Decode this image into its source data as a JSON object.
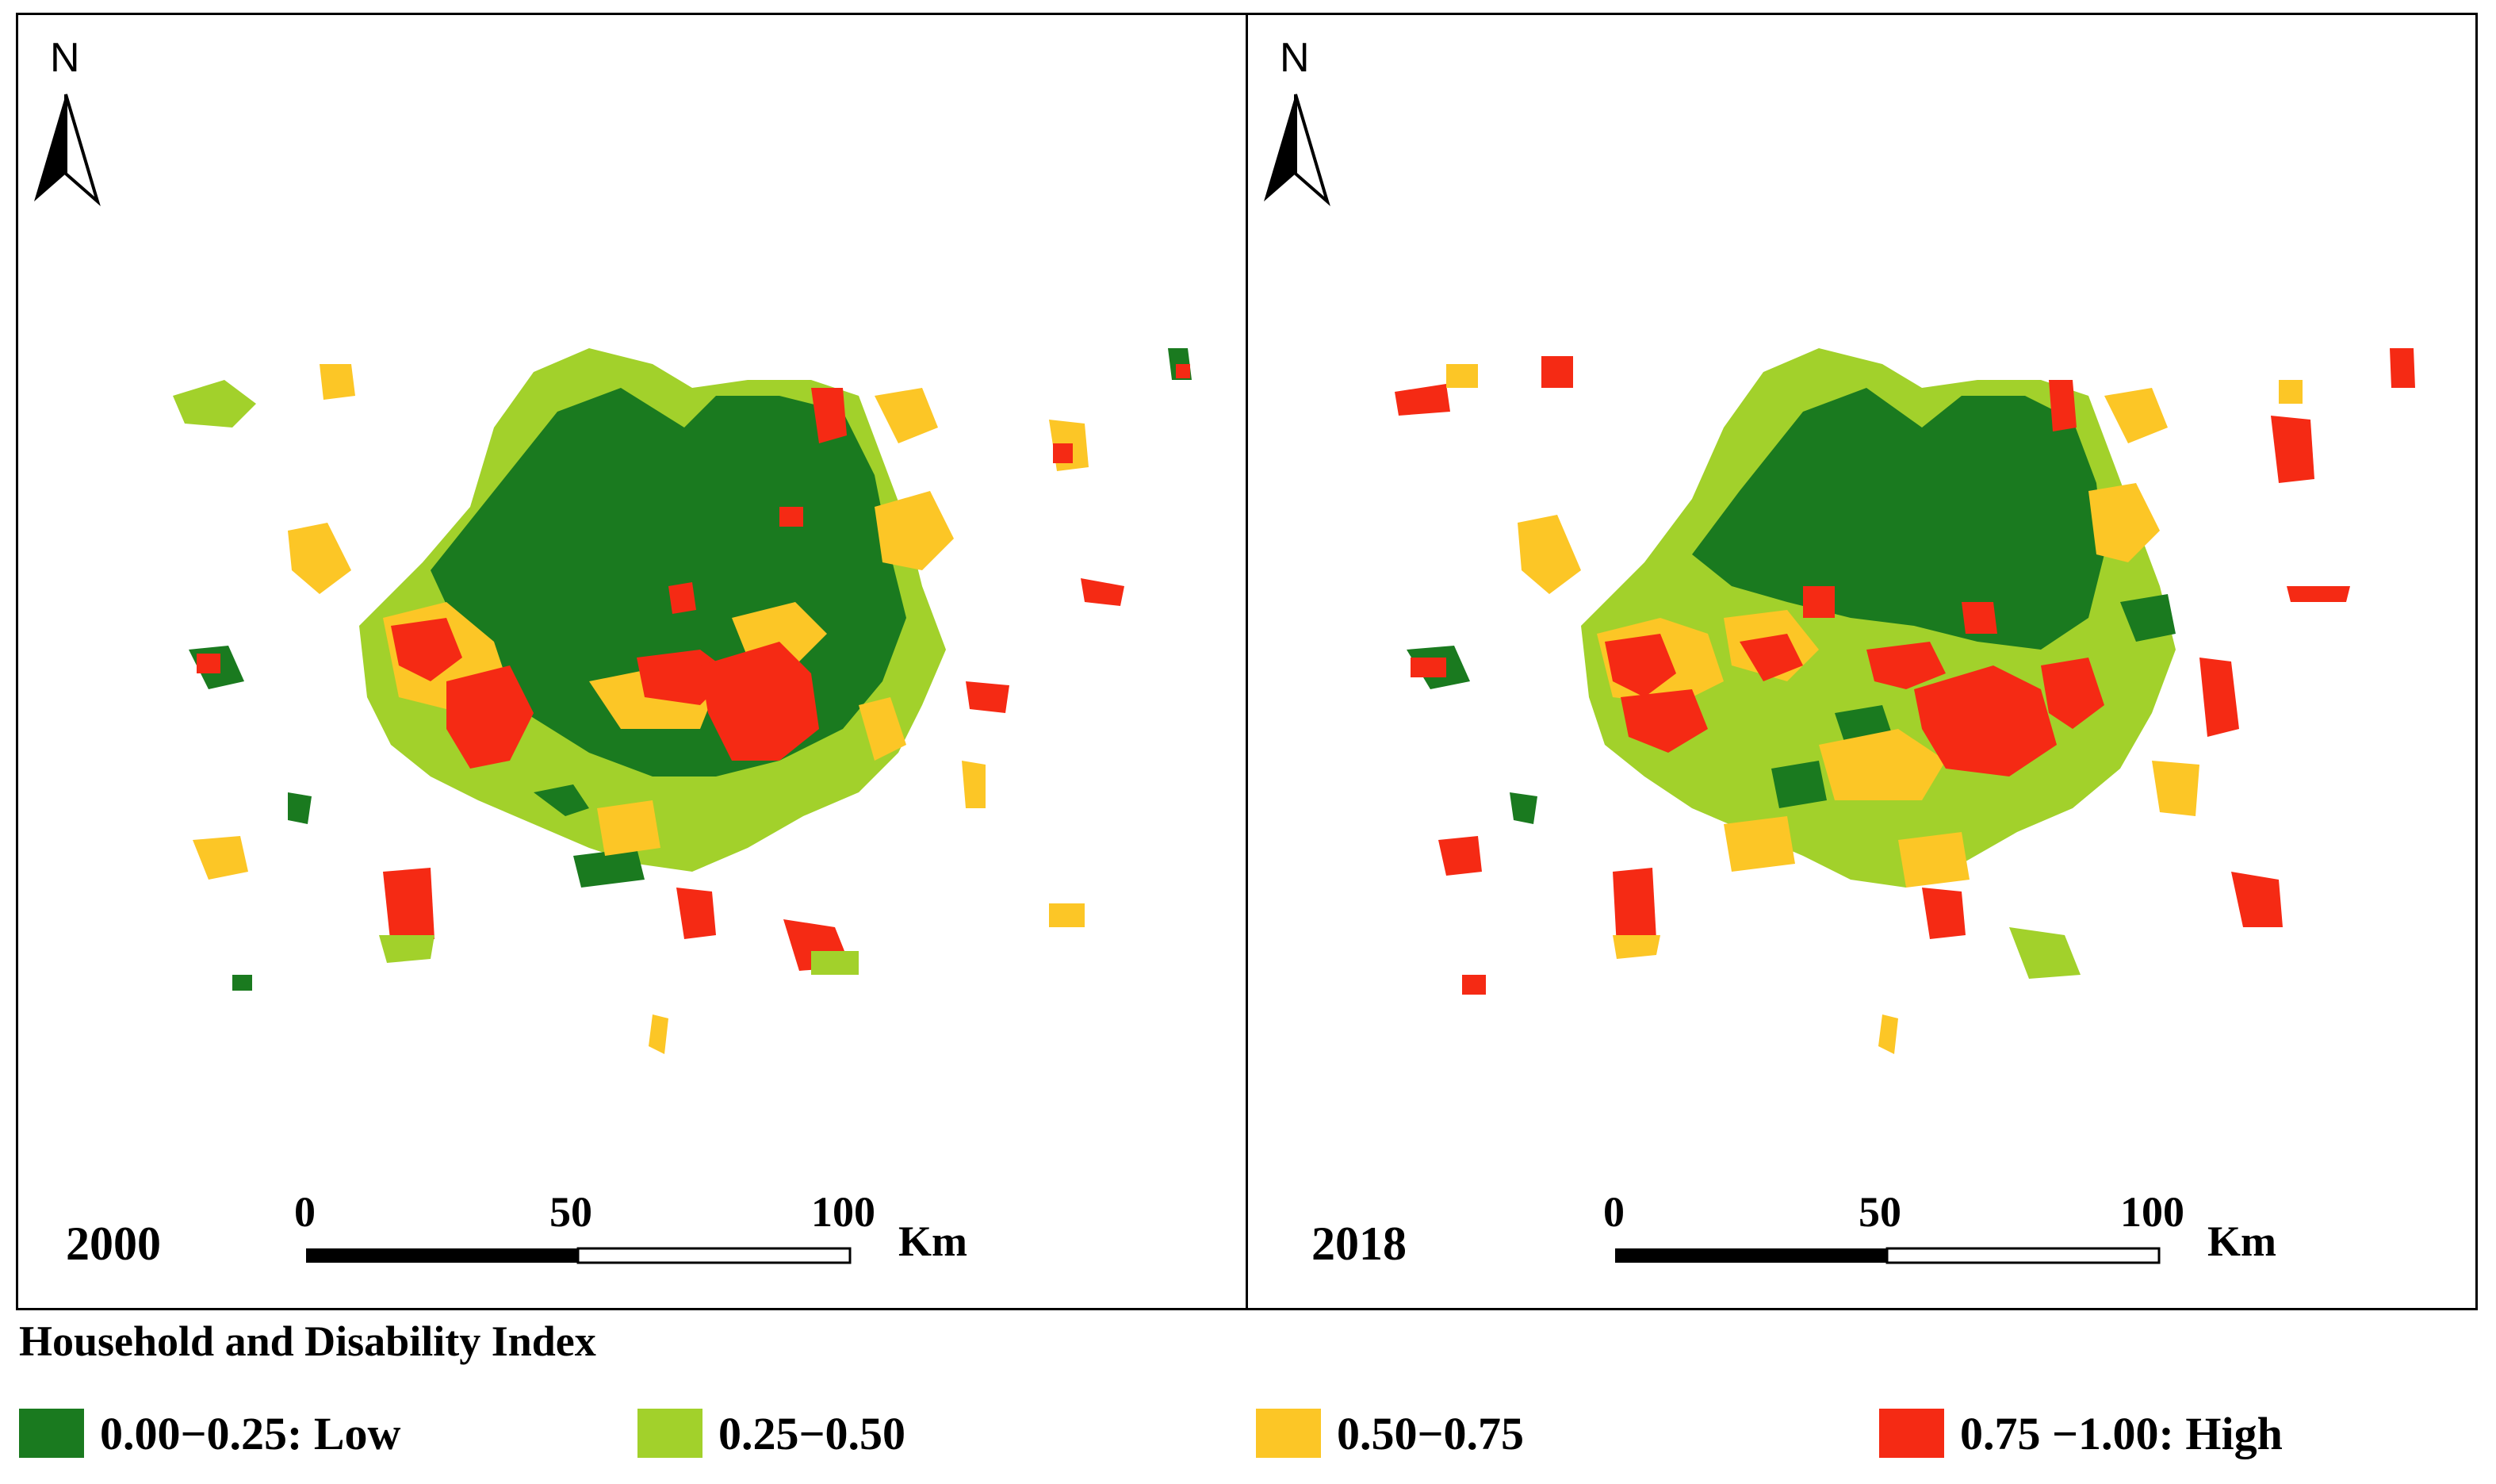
{
  "legend": {
    "title": "Household and Disability Index",
    "items": [
      {
        "label": "0.00−0.25: Low",
        "color": "#1a7a1f"
      },
      {
        "label": "0.25−0.50",
        "color": "#a2d12b"
      },
      {
        "label": "0.50−0.75",
        "color": "#fcc626"
      },
      {
        "label": "0.75 −1.00: High",
        "color": "#f52a14"
      }
    ]
  },
  "maps": [
    {
      "year": "2000",
      "north": "N",
      "scale": {
        "ticks": [
          "0",
          "50",
          "100"
        ],
        "unit": "Km"
      }
    },
    {
      "year": "2018",
      "north": "N",
      "scale": {
        "ticks": [
          "0",
          "50",
          "100"
        ],
        "unit": "Km"
      }
    }
  ]
}
